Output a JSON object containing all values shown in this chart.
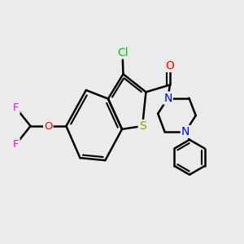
{
  "bg_color": "#ebebeb",
  "bond_color": "#000000",
  "bond_width": 1.8,
  "atom_colors": {
    "Cl": "#00cc00",
    "S": "#999900",
    "O": "#ff0000",
    "N": "#0000ff",
    "F": "#ff00ff",
    "C": "#000000"
  },
  "font_size": 9.5,
  "fig_bg": "#ebebeb"
}
